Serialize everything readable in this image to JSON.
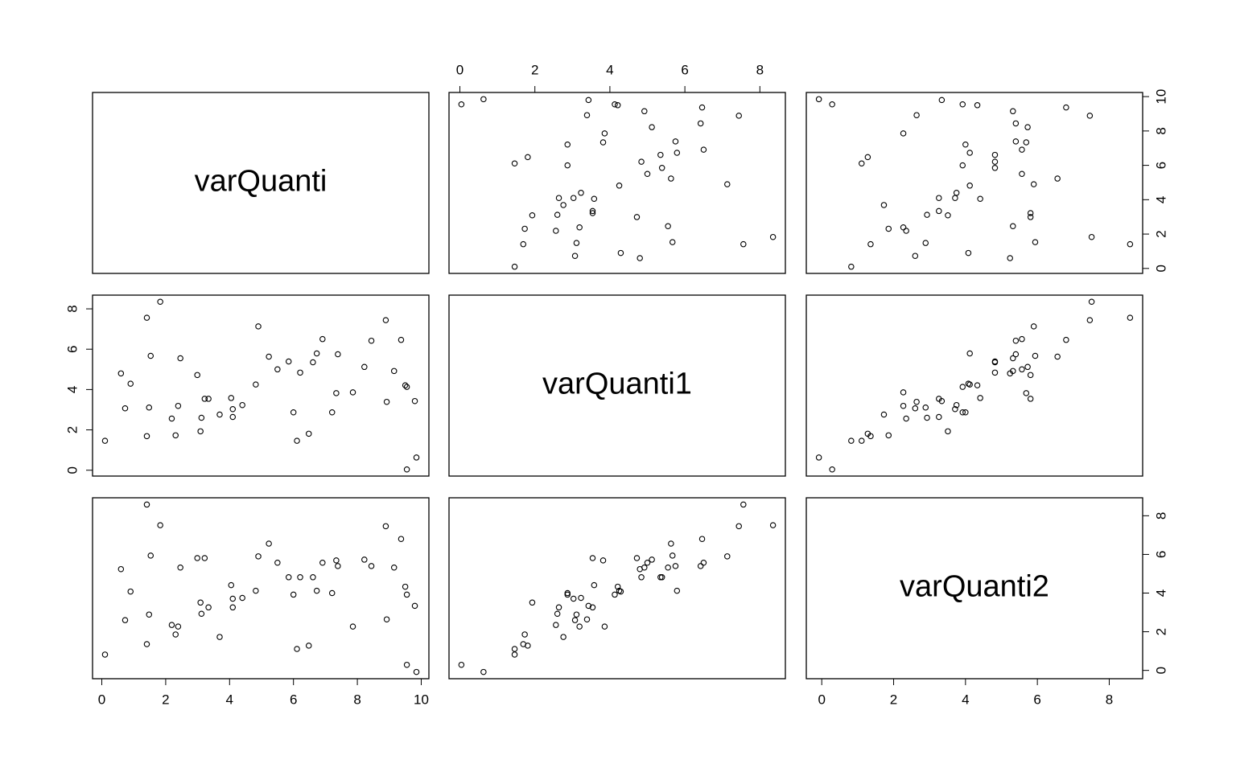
{
  "chart_data": {
    "type": "pairs",
    "variables": [
      {
        "name": "varQuanti",
        "lim": [
          -0.29,
          10.24
        ],
        "ticks": [
          0,
          2,
          4,
          6,
          8,
          10
        ],
        "values": [
          0.1,
          0.6,
          0.73,
          0.9,
          1.41,
          1.41,
          1.48,
          1.53,
          1.83,
          2.19,
          2.31,
          2.39,
          2.46,
          2.99,
          3.09,
          3.12,
          3.22,
          3.34,
          3.69,
          4.05,
          4.1,
          4.1,
          4.4,
          4.82,
          4.9,
          5.23,
          5.5,
          5.85,
          6.0,
          6.11,
          6.21,
          6.48,
          6.61,
          6.73,
          6.91,
          7.21,
          7.34,
          7.39,
          7.86,
          8.22,
          8.44,
          8.89,
          8.92,
          9.15,
          9.37,
          9.5,
          9.55,
          9.8,
          9.55,
          9.85
        ]
      },
      {
        "name": "varQuanti1",
        "lim": [
          -0.29,
          8.68
        ],
        "ticks": [
          0,
          2,
          4,
          6,
          8
        ],
        "values": [
          1.46,
          4.8,
          3.07,
          4.29,
          7.56,
          1.69,
          3.11,
          5.67,
          8.35,
          2.56,
          1.73,
          3.19,
          5.55,
          4.72,
          1.93,
          2.6,
          3.54,
          3.54,
          2.76,
          3.58,
          3.03,
          2.64,
          3.23,
          4.25,
          7.13,
          5.63,
          5.0,
          5.39,
          2.87,
          1.46,
          4.84,
          1.81,
          5.35,
          5.79,
          6.5,
          2.87,
          3.82,
          5.75,
          3.86,
          5.12,
          6.42,
          7.44,
          3.39,
          4.92,
          6.46,
          4.21,
          4.13,
          3.43,
          0.04,
          0.63
        ]
      },
      {
        "name": "varQuanti2",
        "lim": [
          -0.43,
          8.93
        ],
        "ticks": [
          0,
          2,
          4,
          6,
          8
        ],
        "values": [
          0.82,
          5.24,
          2.6,
          4.08,
          8.58,
          1.36,
          2.89,
          5.94,
          7.51,
          2.35,
          1.86,
          2.27,
          5.32,
          5.81,
          3.51,
          2.93,
          5.81,
          3.26,
          1.73,
          4.41,
          3.71,
          3.26,
          3.75,
          4.12,
          5.9,
          6.56,
          5.57,
          4.82,
          3.92,
          1.11,
          4.82,
          1.28,
          4.82,
          4.12,
          5.57,
          4.0,
          5.69,
          5.4,
          2.27,
          5.73,
          5.4,
          7.46,
          2.64,
          5.32,
          6.8,
          4.33,
          3.92,
          3.34,
          0.29,
          -0.08
        ]
      }
    ]
  }
}
